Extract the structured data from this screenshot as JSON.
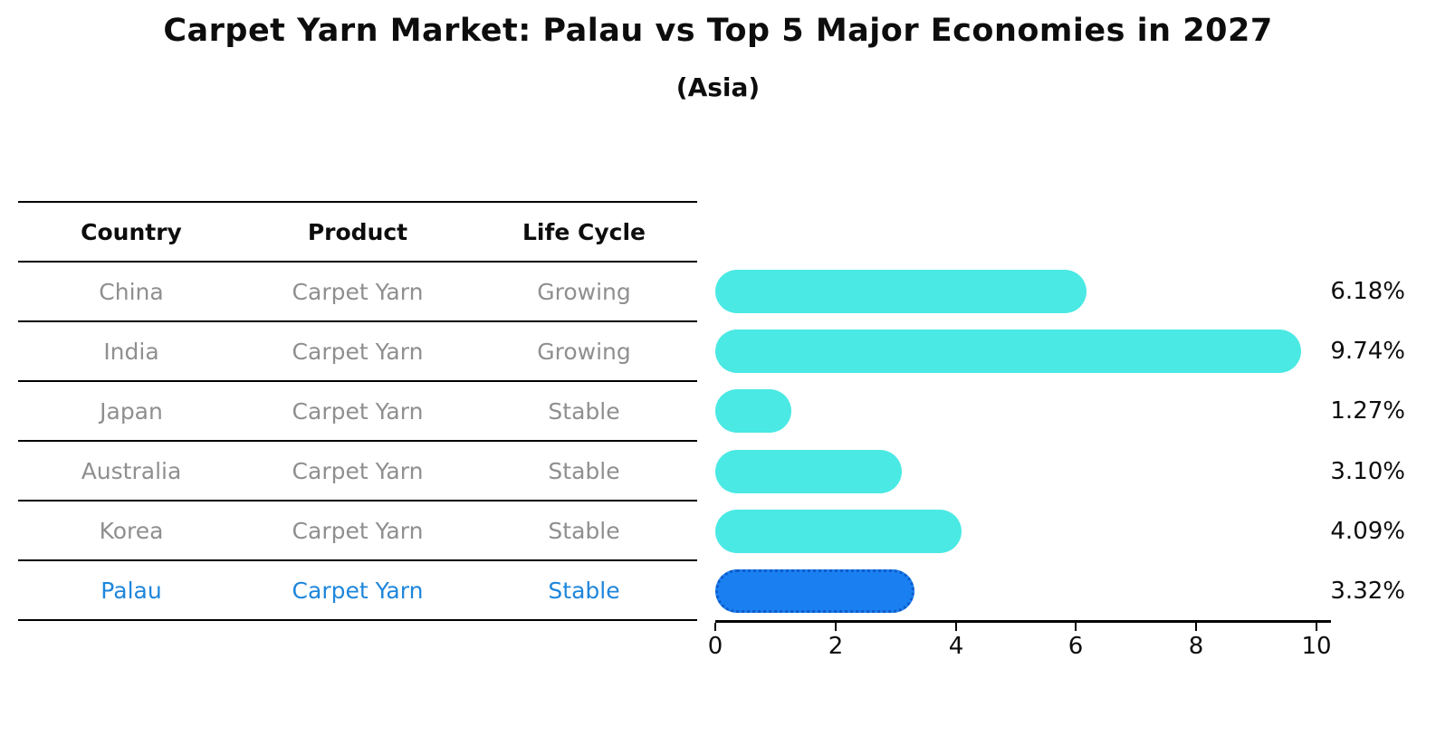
{
  "header": {
    "title": "Carpet Yarn Market: Palau vs Top 5 Major Economies in 2027",
    "subtitle": "(Asia)"
  },
  "table": {
    "columns": [
      "Country",
      "Product",
      "Life Cycle"
    ],
    "rows": [
      {
        "country": "China",
        "product": "Carpet Yarn",
        "life_cycle": "Growing",
        "highlighted": false
      },
      {
        "country": "India",
        "product": "Carpet Yarn",
        "life_cycle": "Growing",
        "highlighted": false
      },
      {
        "country": "Japan",
        "product": "Carpet Yarn",
        "life_cycle": "Stable",
        "highlighted": false
      },
      {
        "country": "Australia",
        "product": "Carpet Yarn",
        "life_cycle": "Stable",
        "highlighted": false
      },
      {
        "country": "Korea",
        "product": "Carpet Yarn",
        "life_cycle": "Stable",
        "highlighted": false
      },
      {
        "country": "Palau",
        "product": "Carpet Yarn",
        "life_cycle": "Stable",
        "highlighted": true
      }
    ]
  },
  "chart_data": {
    "type": "bar",
    "orientation": "horizontal",
    "title": "Carpet Yarn Market: Palau vs Top 5 Major Economies in 2027",
    "subtitle": "(Asia)",
    "categories": [
      "China",
      "India",
      "Japan",
      "Australia",
      "Korea",
      "Palau"
    ],
    "values": [
      6.18,
      9.74,
      1.27,
      3.1,
      4.09,
      3.32
    ],
    "value_labels": [
      "6.18%",
      "9.74%",
      "1.27%",
      "3.10%",
      "4.09%",
      "3.32%"
    ],
    "x_ticks": [
      0,
      2,
      4,
      6,
      8,
      10
    ],
    "xlim": [
      0,
      10
    ],
    "grid": false,
    "legend": false,
    "highlight_index": 5,
    "bar_color": "#4ae9e4",
    "highlight_bar_color": "#1a80f2",
    "highlight_border_color": "#0d5cc9",
    "highlight_text_color": "#1e86dc",
    "row_text_color": "#8f8f8f",
    "text_color": "#0d0d0d"
  }
}
